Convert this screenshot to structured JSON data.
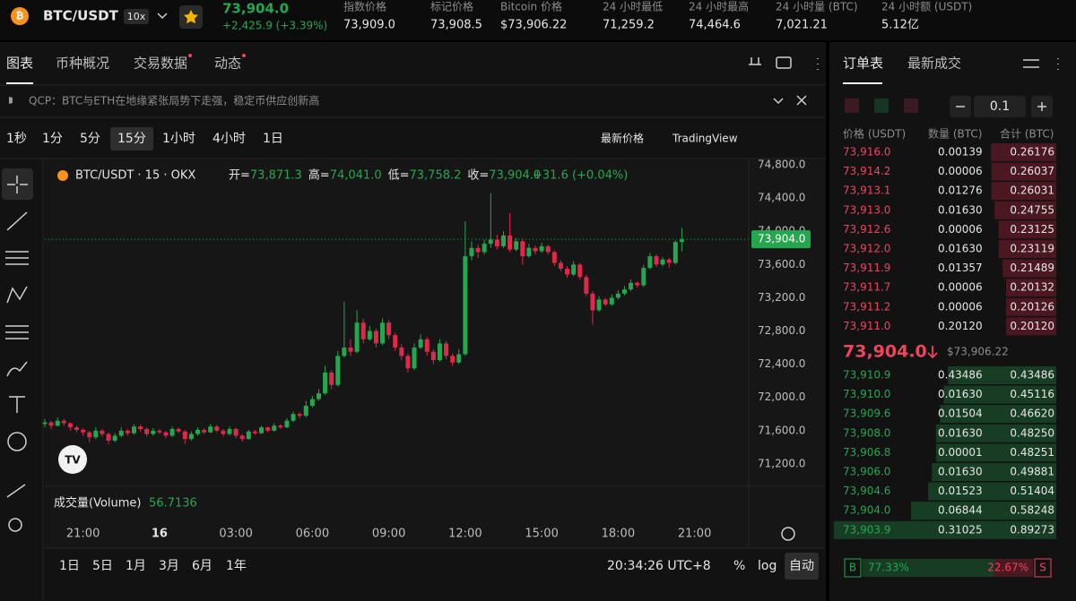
{
  "header": {
    "symbol": "BTC/USDT",
    "leverage": "10x",
    "price": "73,904.0",
    "change": "+2,425.9 (+3.39%)",
    "stats": [
      {
        "label": "指数价格",
        "value": "73,909.0"
      },
      {
        "label": "标记价格",
        "value": "73,908.5"
      },
      {
        "label": "Bitcoin 价格",
        "value": "$73,906.22"
      },
      {
        "label": "24 小时最低",
        "value": "71,259.2"
      },
      {
        "label": "24 小时最高",
        "value": "74,464.6"
      },
      {
        "label": "24 小时量 (BTC)",
        "value": "7,021.21"
      },
      {
        "label": "24 小时额 (USDT)",
        "value": "5.12亿"
      }
    ]
  },
  "tabs": [
    "图表",
    "币种概况",
    "交易数据",
    "动态"
  ],
  "news": "QCP：BTC与ETH在地缘紧张局势下走强，稳定币供应创新高",
  "intervals": [
    "1秒",
    "1分",
    "5分",
    "15分",
    "1小时",
    "4小时",
    "1日"
  ],
  "price_source": "最新价格",
  "chart_engine": "TradingView",
  "chart_data": {
    "type": "candlestick",
    "legend": "BTC/USDT · 15 · OKX",
    "ohlc_header": [
      {
        "label": "开=",
        "value": "73,871.3"
      },
      {
        "label": "高=",
        "value": "74,041.0"
      },
      {
        "label": "低=",
        "value": "73,758.2"
      },
      {
        "label": "收=",
        "value": "73,904.0"
      }
    ],
    "ohlc_change": "+31.6 (+0.04%)",
    "last_price": {
      "value": 73904,
      "label": "73,904.0"
    },
    "volume_label": "成交量(Volume)",
    "volume_value": "56.7136",
    "up_color": "#25a750",
    "down_color": "#e0294a",
    "ylim": [
      70930,
      74865
    ],
    "yticks": [
      {
        "value": 74800,
        "label": "74,800.0"
      },
      {
        "value": 74400,
        "label": "74,400.0"
      },
      {
        "value": 74000,
        "label": "74,000.0"
      },
      {
        "value": 73600,
        "label": "73,600.0"
      },
      {
        "value": 73200,
        "label": "73,200.0"
      },
      {
        "value": 72800,
        "label": "72,800.0"
      },
      {
        "value": 72400,
        "label": "72,400.0"
      },
      {
        "value": 72000,
        "label": "72,000.0"
      },
      {
        "value": 71600,
        "label": "71,600.0"
      },
      {
        "value": 71200,
        "label": "71,200.0"
      }
    ],
    "xlim": [
      0,
      110.5
    ],
    "xticks": [
      {
        "value": 6,
        "label": "21:00"
      },
      {
        "value": 18,
        "label": "16"
      },
      {
        "value": 30,
        "label": "03:00"
      },
      {
        "value": 42,
        "label": "06:00"
      },
      {
        "value": 54,
        "label": "09:00"
      },
      {
        "value": 66,
        "label": "12:00"
      },
      {
        "value": 78,
        "label": "15:00"
      },
      {
        "value": 90,
        "label": "18:00"
      },
      {
        "value": 102,
        "label": "21:00"
      }
    ],
    "candles": [
      [
        71680,
        71740,
        71640,
        71700
      ],
      [
        71700,
        71720,
        71620,
        71660
      ],
      [
        71660,
        71760,
        71650,
        71720
      ],
      [
        71720,
        71740,
        71660,
        71690
      ],
      [
        71690,
        71700,
        71600,
        71640
      ],
      [
        71640,
        71660,
        71580,
        71610
      ],
      [
        71610,
        71630,
        71540,
        71580
      ],
      [
        71580,
        71600,
        71460,
        71520
      ],
      [
        71520,
        71640,
        71500,
        71600
      ],
      [
        71600,
        71620,
        71530,
        71560
      ],
      [
        71560,
        71580,
        71440,
        71480
      ],
      [
        71480,
        71570,
        71460,
        71540
      ],
      [
        71540,
        71640,
        71520,
        71600
      ],
      [
        71600,
        71620,
        71540,
        71570
      ],
      [
        71570,
        71680,
        71550,
        71650
      ],
      [
        71650,
        71670,
        71590,
        71620
      ],
      [
        71620,
        71640,
        71530,
        71560
      ],
      [
        71560,
        71630,
        71540,
        71600
      ],
      [
        71600,
        71620,
        71560,
        71580
      ],
      [
        71580,
        71600,
        71510,
        71540
      ],
      [
        71540,
        71650,
        71520,
        71620
      ],
      [
        71620,
        71640,
        71570,
        71590
      ],
      [
        71590,
        71610,
        71440,
        71500
      ],
      [
        71500,
        71590,
        71480,
        71560
      ],
      [
        71560,
        71640,
        71540,
        71610
      ],
      [
        71610,
        71630,
        71560,
        71580
      ],
      [
        71580,
        71680,
        71570,
        71650
      ],
      [
        71650,
        71670,
        71580,
        71600
      ],
      [
        71600,
        71620,
        71530,
        71560
      ],
      [
        71560,
        71650,
        71540,
        71620
      ],
      [
        71620,
        71640,
        71510,
        71540
      ],
      [
        71540,
        71560,
        71470,
        71500
      ],
      [
        71500,
        71610,
        71490,
        71590
      ],
      [
        71590,
        71610,
        71550,
        71570
      ],
      [
        71570,
        71660,
        71560,
        71640
      ],
      [
        71640,
        71650,
        71580,
        71600
      ],
      [
        71600,
        71690,
        71590,
        71660
      ],
      [
        71660,
        71680,
        71620,
        71640
      ],
      [
        71640,
        71750,
        71630,
        71720
      ],
      [
        71720,
        71830,
        71700,
        71800
      ],
      [
        71800,
        71820,
        71750,
        71780
      ],
      [
        71780,
        71960,
        71760,
        71900
      ],
      [
        71900,
        72020,
        71880,
        71980
      ],
      [
        71980,
        72100,
        71960,
        72050
      ],
      [
        72050,
        72380,
        72030,
        72300
      ],
      [
        72300,
        72330,
        72100,
        72150
      ],
      [
        72150,
        72560,
        72130,
        72500
      ],
      [
        72500,
        73150,
        72480,
        72600
      ],
      [
        72600,
        72700,
        72500,
        72550
      ],
      [
        72550,
        73050,
        72530,
        72900
      ],
      [
        72900,
        72950,
        72650,
        72700
      ],
      [
        72700,
        72860,
        72680,
        72800
      ],
      [
        72800,
        72830,
        72600,
        72650
      ],
      [
        72650,
        72950,
        72630,
        72900
      ],
      [
        72900,
        72930,
        72700,
        72750
      ],
      [
        72750,
        72780,
        72560,
        72600
      ],
      [
        72600,
        72640,
        72450,
        72500
      ],
      [
        72500,
        72530,
        72300,
        72350
      ],
      [
        72350,
        72650,
        72330,
        72600
      ],
      [
        72600,
        72760,
        72580,
        72700
      ],
      [
        72700,
        72730,
        72500,
        72550
      ],
      [
        72550,
        72580,
        72400,
        72450
      ],
      [
        72450,
        72700,
        72430,
        72650
      ],
      [
        72650,
        72680,
        72460,
        72500
      ],
      [
        72500,
        72530,
        72380,
        72420
      ],
      [
        72420,
        72580,
        72400,
        72520
      ],
      [
        72520,
        74120,
        72500,
        73700
      ],
      [
        73700,
        73880,
        73650,
        73800
      ],
      [
        73800,
        73840,
        73680,
        73750
      ],
      [
        73750,
        73900,
        73720,
        73850
      ],
      [
        73850,
        74460,
        73800,
        73900
      ],
      [
        73900,
        73960,
        73780,
        73820
      ],
      [
        73820,
        74000,
        73800,
        73950
      ],
      [
        73950,
        74220,
        73750,
        73780
      ],
      [
        73780,
        73920,
        73760,
        73880
      ],
      [
        73880,
        73900,
        73600,
        73700
      ],
      [
        73700,
        73850,
        73680,
        73800
      ],
      [
        73800,
        73830,
        73720,
        73760
      ],
      [
        73760,
        73860,
        73740,
        73820
      ],
      [
        73820,
        73840,
        73720,
        73750
      ],
      [
        73750,
        73770,
        73580,
        73620
      ],
      [
        73620,
        73650,
        73520,
        73550
      ],
      [
        73550,
        73580,
        73440,
        73480
      ],
      [
        73480,
        73640,
        73460,
        73600
      ],
      [
        73600,
        73620,
        73420,
        73450
      ],
      [
        73450,
        73480,
        73220,
        73250
      ],
      [
        73250,
        73280,
        72880,
        73050
      ],
      [
        73050,
        73220,
        73030,
        73180
      ],
      [
        73180,
        73200,
        73100,
        73120
      ],
      [
        73120,
        73240,
        73100,
        73200
      ],
      [
        73200,
        73290,
        73180,
        73250
      ],
      [
        73250,
        73340,
        73230,
        73300
      ],
      [
        73300,
        73420,
        73280,
        73380
      ],
      [
        73380,
        73400,
        73320,
        73350
      ],
      [
        73350,
        73600,
        73330,
        73560
      ],
      [
        73560,
        73740,
        73540,
        73700
      ],
      [
        73700,
        73720,
        73570,
        73600
      ],
      [
        73600,
        73690,
        73580,
        73660
      ],
      [
        73660,
        73680,
        73560,
        73620
      ],
      [
        73620,
        73890,
        73600,
        73871.3
      ],
      [
        73871.3,
        74041,
        73758.2,
        73904
      ]
    ]
  },
  "bottom_bar": {
    "ranges": [
      "1日",
      "5日",
      "1月",
      "3月",
      "6月",
      "1年"
    ],
    "clock": "20:34:26 UTC+8",
    "percent": "%",
    "log": "log",
    "auto": "自动"
  },
  "order_book": {
    "tabs": [
      "订单表",
      "最新成交"
    ],
    "precision": "0.1",
    "headers": [
      "价格 (USDT)",
      "数量 (BTC)",
      "合计 (BTC)"
    ],
    "asks": [
      {
        "price": "73,916.0",
        "qty": "0.00139",
        "total": {
          "value": 0.26176,
          "label": "0.26176"
        }
      },
      {
        "price": "73,914.2",
        "qty": "0.00006",
        "total": {
          "value": 0.26037,
          "label": "0.26037"
        }
      },
      {
        "price": "73,913.1",
        "qty": "0.01276",
        "total": {
          "value": 0.26031,
          "label": "0.26031"
        }
      },
      {
        "price": "73,913.0",
        "qty": "0.01630",
        "total": {
          "value": 0.24755,
          "label": "0.24755"
        }
      },
      {
        "price": "73,912.6",
        "qty": "0.00006",
        "total": {
          "value": 0.23125,
          "label": "0.23125"
        }
      },
      {
        "price": "73,912.0",
        "qty": "0.01630",
        "total": {
          "value": 0.23119,
          "label": "0.23119"
        }
      },
      {
        "price": "73,911.9",
        "qty": "0.01357",
        "total": {
          "value": 0.21489,
          "label": "0.21489"
        }
      },
      {
        "price": "73,911.7",
        "qty": "0.00006",
        "total": {
          "value": 0.20132,
          "label": "0.20132"
        }
      },
      {
        "price": "73,911.2",
        "qty": "0.00006",
        "total": {
          "value": 0.20126,
          "label": "0.20126"
        }
      },
      {
        "price": "73,911.0",
        "qty": "0.20120",
        "total": {
          "value": 0.2012,
          "label": "0.20120"
        }
      }
    ],
    "mid_price": "73,904.0",
    "mid_usd": "$73,906.22",
    "bids": [
      {
        "price": "73,910.9",
        "qty": "0.43486",
        "total": {
          "value": 0.43486,
          "label": "0.43486"
        }
      },
      {
        "price": "73,910.0",
        "qty": "0.01630",
        "total": {
          "value": 0.45116,
          "label": "0.45116"
        }
      },
      {
        "price": "73,909.6",
        "qty": "0.01504",
        "total": {
          "value": 0.4662,
          "label": "0.46620"
        }
      },
      {
        "price": "73,908.0",
        "qty": "0.01630",
        "total": {
          "value": 0.4825,
          "label": "0.48250"
        }
      },
      {
        "price": "73,906.8",
        "qty": "0.00001",
        "total": {
          "value": 0.48251,
          "label": "0.48251"
        }
      },
      {
        "price": "73,906.0",
        "qty": "0.01630",
        "total": {
          "value": 0.49881,
          "label": "0.49881"
        }
      },
      {
        "price": "73,904.6",
        "qty": "0.01523",
        "total": {
          "value": 0.51404,
          "label": "0.51404"
        }
      },
      {
        "price": "73,904.0",
        "qty": "0.06844",
        "total": {
          "value": 0.58248,
          "label": "0.58248"
        }
      },
      {
        "price": "73,903.9",
        "qty": "0.31025",
        "total": {
          "value": 0.89273,
          "label": "0.89273"
        }
      }
    ],
    "buy_mark": "B",
    "sell_mark": "S",
    "buy_ratio": {
      "value": 77.33,
      "label": "77.33%"
    },
    "sell_ratio": {
      "value": 22.67,
      "label": "22.67%"
    }
  }
}
